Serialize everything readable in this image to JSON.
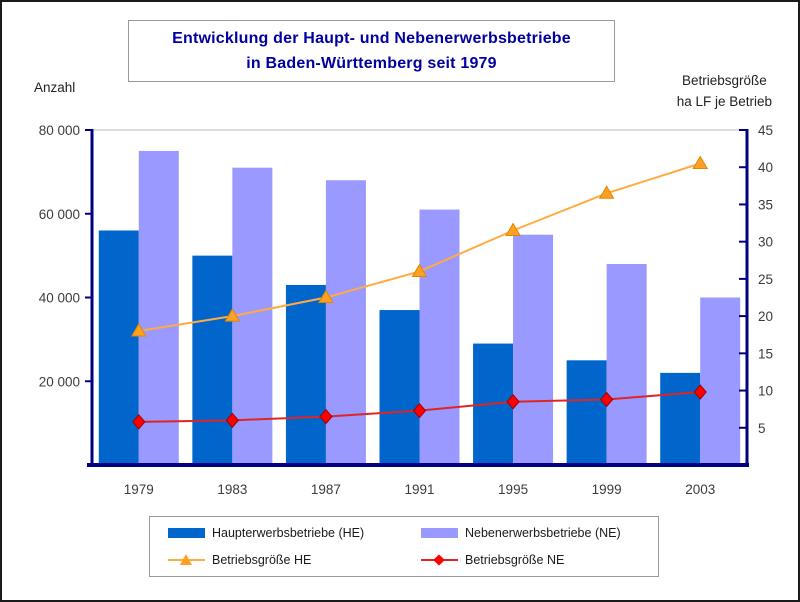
{
  "title": {
    "line1": "Entwicklung der Haupt- und Nebenerwerbsbetriebe",
    "line2": "in Baden-Württemberg seit 1979"
  },
  "left_axis": {
    "title": "Anzahl",
    "ticks": [
      "80 000",
      "60 000",
      "40 000",
      "20 000"
    ],
    "tick_values": [
      80000,
      60000,
      40000,
      20000
    ]
  },
  "right_axis": {
    "title_line1": "Betriebsgröße",
    "title_line2": "ha LF je Betrieb",
    "ticks": [
      "45",
      "40",
      "35",
      "30",
      "25",
      "20",
      "15",
      "10",
      "5"
    ],
    "tick_values": [
      45,
      40,
      35,
      30,
      25,
      20,
      15,
      10,
      5
    ]
  },
  "colors": {
    "axis": "#000080",
    "gridline": "#c6c6c6",
    "tick_text": "#3c3c3c",
    "title_text": "#0000a0"
  },
  "chart_data": {
    "type": "bar+line",
    "title": "Entwicklung der Haupt- und Nebenerwerbsbetriebe in Baden-Württemberg seit 1979",
    "categories": [
      "1979",
      "1983",
      "1987",
      "1991",
      "1995",
      "1999",
      "2003"
    ],
    "left_ylim": [
      0,
      80000
    ],
    "right_ylim": [
      0,
      45
    ],
    "xlabel": "",
    "ylabel_left": "Anzahl",
    "ylabel_right": "Betriebsgröße ha LF je Betrieb",
    "grid": "top-border-only",
    "legend_position": "bottom",
    "series": [
      {
        "name": "Haupterwerbsbetriebe (HE)",
        "type": "bar",
        "axis": "left",
        "color": "#0066cc",
        "values": [
          56000,
          50000,
          43000,
          37000,
          29000,
          25000,
          22000
        ]
      },
      {
        "name": "Nebenerwerbsbetriebe (NE)",
        "type": "bar",
        "axis": "left",
        "color": "#9999ff",
        "values": [
          75000,
          71000,
          68000,
          61000,
          55000,
          48000,
          40000
        ]
      },
      {
        "name": "Betriebsgröße HE",
        "type": "line",
        "axis": "right",
        "color": "#ffab42",
        "marker": "triangle",
        "marker_color": "#ffa024",
        "marker_stroke": "#d98a00",
        "values": [
          18,
          20,
          22.5,
          26,
          31.5,
          36.5,
          40.5
        ]
      },
      {
        "name": "Betriebsgröße NE",
        "type": "line",
        "axis": "right",
        "color": "#e02424",
        "marker": "diamond",
        "marker_color": "#ff0000",
        "marker_stroke": "#a00000",
        "values": [
          5.8,
          6.0,
          6.5,
          7.3,
          8.5,
          8.8,
          9.8
        ]
      }
    ]
  }
}
